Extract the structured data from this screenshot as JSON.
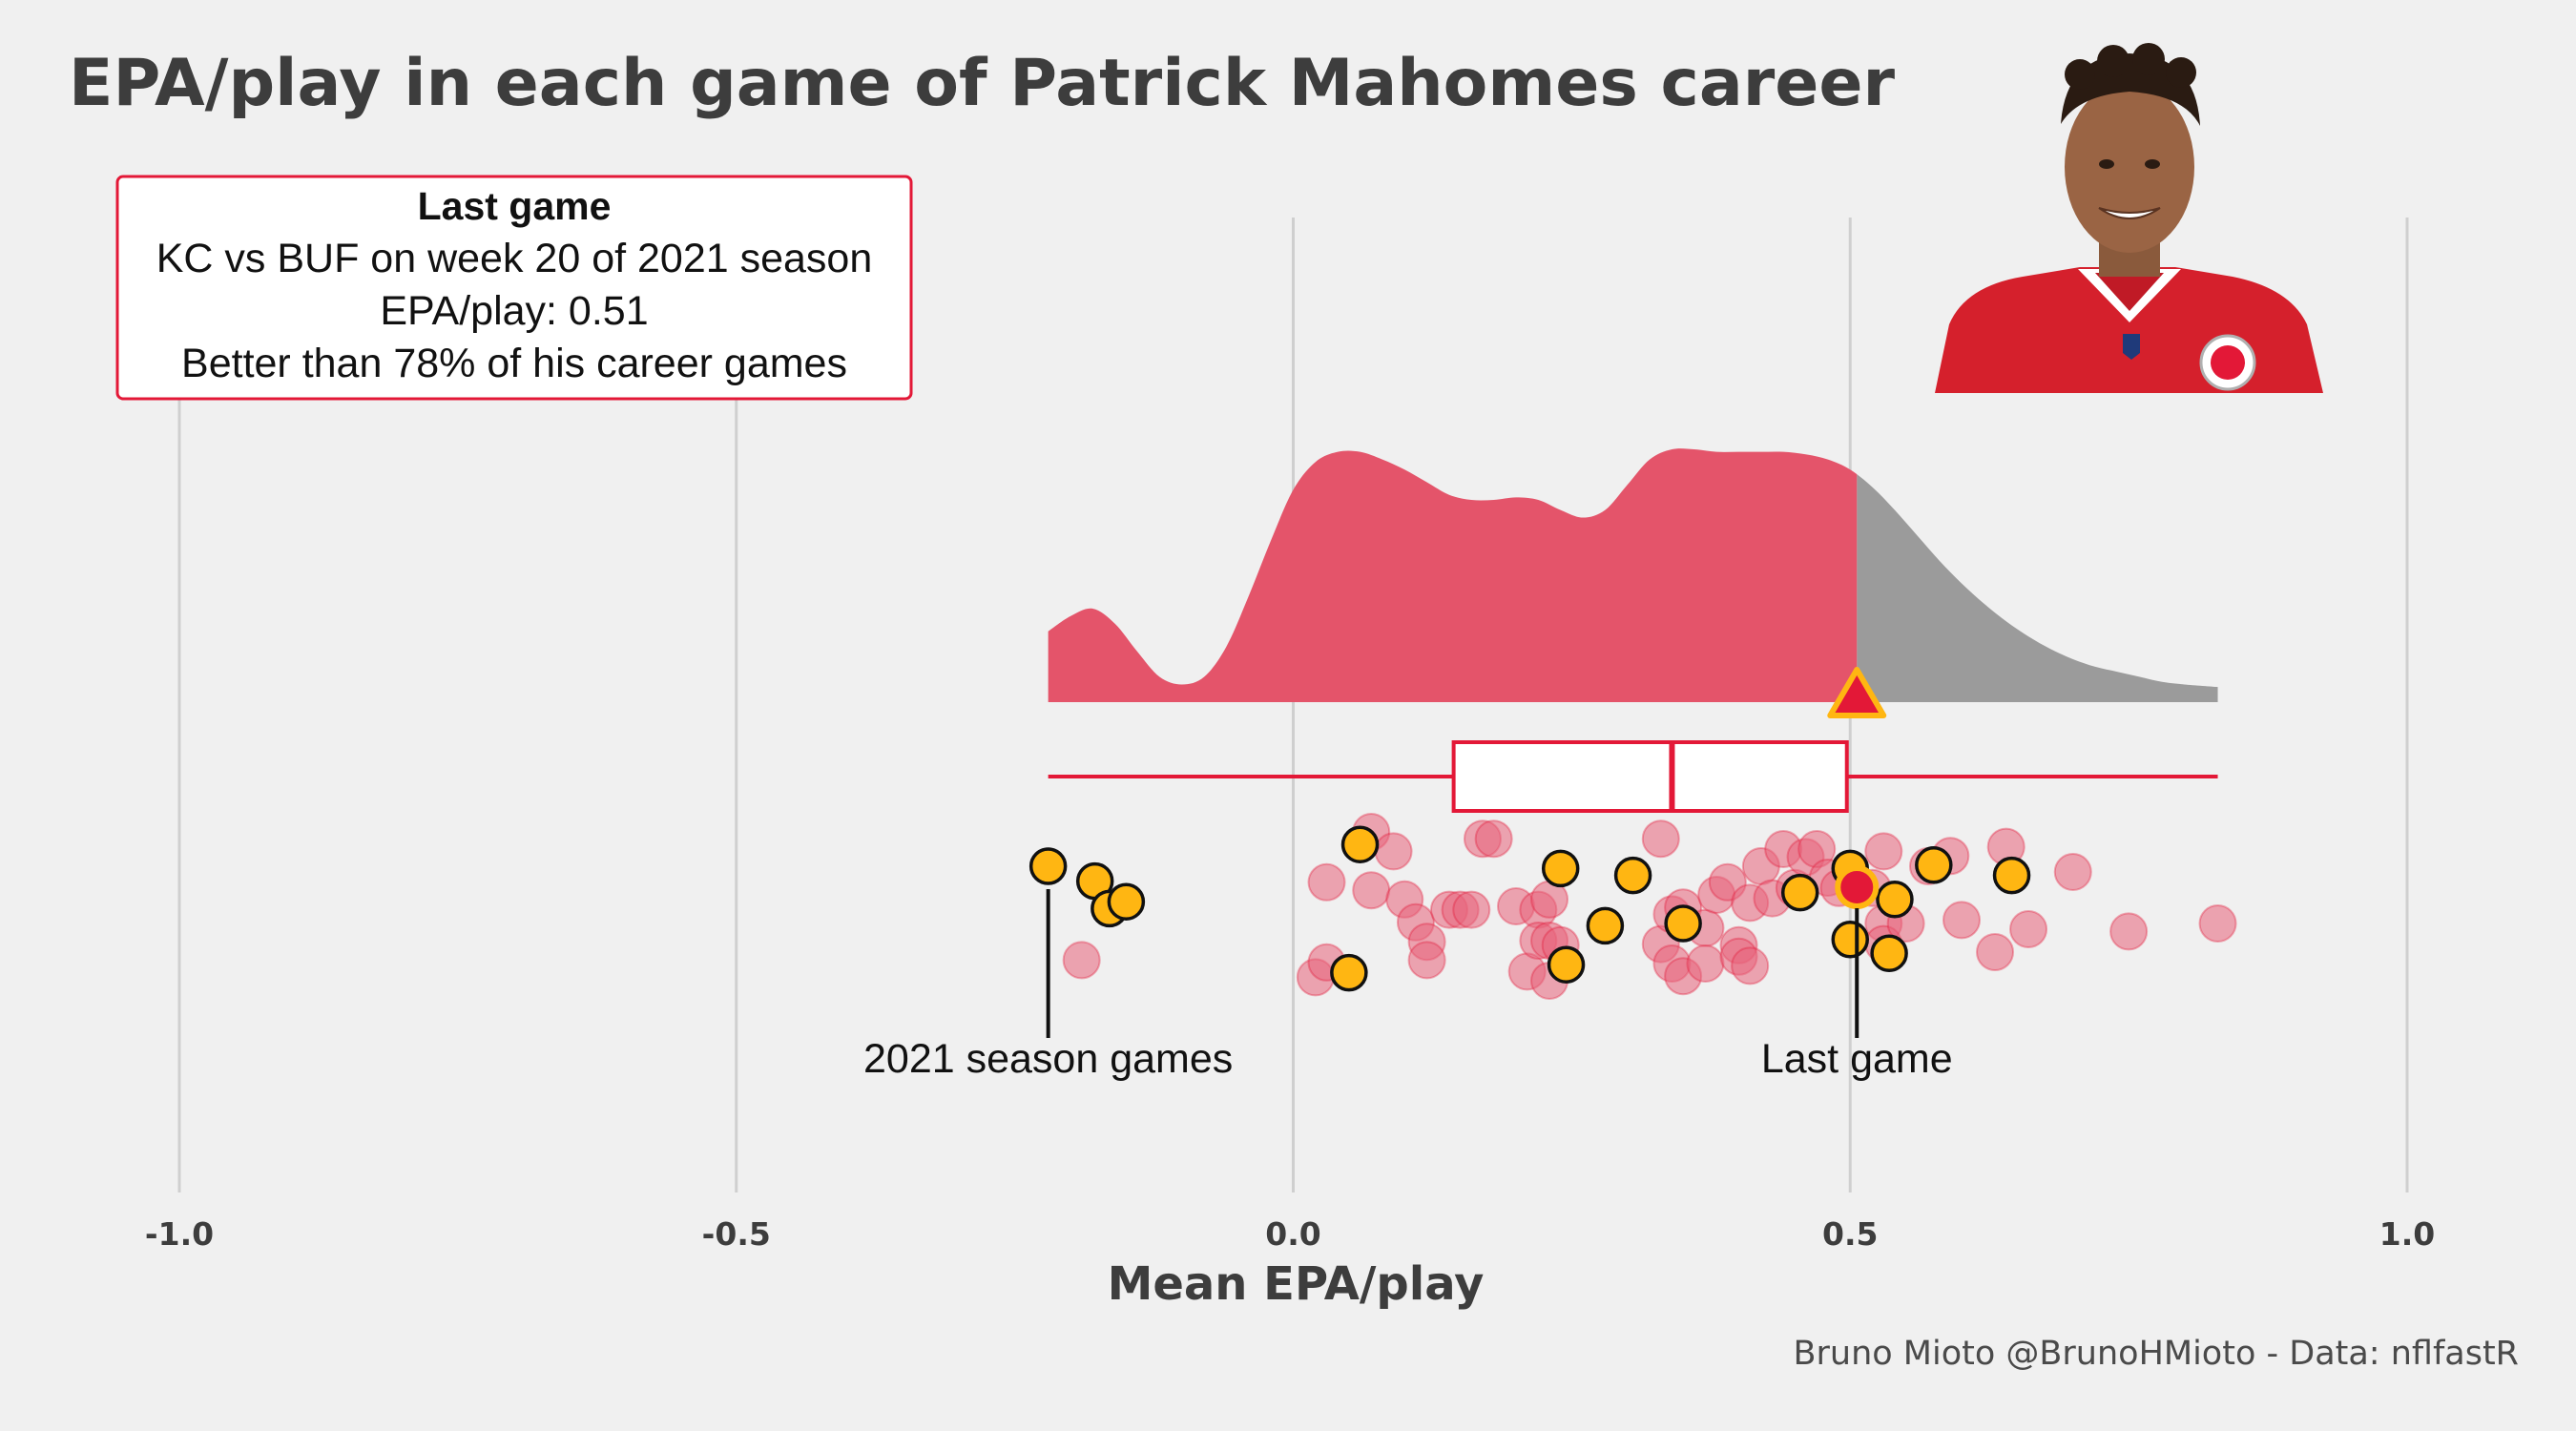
{
  "title": "EPA/play in each game of Patrick Mahomes career",
  "caption": "Bruno Mioto @BrunoHMioto - Data: nflfastR",
  "info_box": {
    "heading": "Last game",
    "line1": "KC vs BUF on week 20 of 2021 season",
    "line2": "EPA/play: 0.51",
    "line3": "Better than 78% of his career games"
  },
  "annotations": {
    "season_label": "2021 season games",
    "last_game_label": "Last game"
  },
  "colors": {
    "accent": "#e31837",
    "density_fill": "#e4546a",
    "density_grey": "#9b9b9b",
    "season_point": "#ffb612",
    "other_point": "#e8637a",
    "background": "#f0f0f0",
    "grid": "#cfcfcf"
  },
  "image": {
    "name": "player-headshot"
  },
  "chart_data": {
    "type": "raincloud",
    "xlabel": "Mean EPA/play",
    "xlim": [
      -1.0,
      1.0
    ],
    "ticks": [
      -1.0,
      -0.5,
      0.0,
      0.5,
      1.0
    ],
    "tick_labels": [
      "-1.0",
      "-0.5",
      "0.0",
      "0.5",
      "1.0"
    ],
    "grid": true,
    "box": {
      "min": -0.22,
      "q1": 0.144,
      "median": 0.34,
      "q3": 0.497,
      "max": 0.83
    },
    "last_game": {
      "x": 0.506,
      "percentile": 78
    },
    "density": {
      "x": [
        -0.22,
        -0.2,
        -0.18,
        -0.16,
        -0.14,
        -0.12,
        -0.1,
        -0.08,
        -0.06,
        -0.04,
        -0.02,
        0.0,
        0.02,
        0.04,
        0.06,
        0.08,
        0.1,
        0.12,
        0.14,
        0.16,
        0.18,
        0.2,
        0.22,
        0.24,
        0.26,
        0.28,
        0.3,
        0.32,
        0.34,
        0.36,
        0.38,
        0.4,
        0.42,
        0.44,
        0.46,
        0.48,
        0.5,
        0.52,
        0.54,
        0.56,
        0.58,
        0.6,
        0.62,
        0.64,
        0.66,
        0.68,
        0.7,
        0.72,
        0.74,
        0.76,
        0.78,
        0.8,
        0.83
      ],
      "y": [
        0.28,
        0.34,
        0.37,
        0.31,
        0.2,
        0.1,
        0.07,
        0.1,
        0.22,
        0.42,
        0.64,
        0.84,
        0.95,
        0.99,
        0.99,
        0.96,
        0.92,
        0.87,
        0.82,
        0.8,
        0.8,
        0.81,
        0.8,
        0.76,
        0.73,
        0.76,
        0.86,
        0.96,
        1.0,
        1.0,
        0.99,
        0.99,
        0.99,
        0.99,
        0.98,
        0.96,
        0.92,
        0.85,
        0.76,
        0.66,
        0.56,
        0.47,
        0.39,
        0.32,
        0.26,
        0.21,
        0.17,
        0.14,
        0.12,
        0.1,
        0.08,
        0.07,
        0.06
      ]
    },
    "season_2021_games": [
      {
        "x": -0.22,
        "j": -0.05
      },
      {
        "x": -0.178,
        "j": 0.08
      },
      {
        "x": -0.165,
        "j": 0.32
      },
      {
        "x": -0.15,
        "j": 0.26
      },
      {
        "x": 0.06,
        "j": -0.24
      },
      {
        "x": 0.05,
        "j": 0.88
      },
      {
        "x": 0.24,
        "j": -0.03
      },
      {
        "x": 0.245,
        "j": 0.81
      },
      {
        "x": 0.305,
        "j": 0.03
      },
      {
        "x": 0.28,
        "j": 0.47
      },
      {
        "x": 0.35,
        "j": 0.45
      },
      {
        "x": 0.455,
        "j": 0.18
      },
      {
        "x": 0.5,
        "j": -0.03
      },
      {
        "x": 0.5,
        "j": 0.59
      },
      {
        "x": 0.535,
        "j": 0.71
      },
      {
        "x": 0.54,
        "j": 0.24
      },
      {
        "x": 0.575,
        "j": -0.06
      },
      {
        "x": 0.645,
        "j": 0.03
      }
    ],
    "other_games": [
      {
        "x": -0.19,
        "j": 0.77
      },
      {
        "x": 0.02,
        "j": 0.92
      },
      {
        "x": 0.03,
        "j": 0.09
      },
      {
        "x": 0.03,
        "j": 0.79
      },
      {
        "x": 0.07,
        "j": -0.35
      },
      {
        "x": 0.07,
        "j": 0.16
      },
      {
        "x": 0.09,
        "j": -0.18
      },
      {
        "x": 0.1,
        "j": 0.24
      },
      {
        "x": 0.11,
        "j": 0.44
      },
      {
        "x": 0.12,
        "j": 0.61
      },
      {
        "x": 0.12,
        "j": 0.77
      },
      {
        "x": 0.14,
        "j": 0.33
      },
      {
        "x": 0.15,
        "j": 0.33
      },
      {
        "x": 0.16,
        "j": 0.33
      },
      {
        "x": 0.17,
        "j": -0.29
      },
      {
        "x": 0.18,
        "j": -0.29
      },
      {
        "x": 0.2,
        "j": 0.3
      },
      {
        "x": 0.21,
        "j": 0.87
      },
      {
        "x": 0.22,
        "j": 0.33
      },
      {
        "x": 0.22,
        "j": 0.6
      },
      {
        "x": 0.23,
        "j": 0.24
      },
      {
        "x": 0.23,
        "j": 0.6
      },
      {
        "x": 0.23,
        "j": 0.95
      },
      {
        "x": 0.24,
        "j": 0.64
      },
      {
        "x": 0.33,
        "j": -0.29
      },
      {
        "x": 0.33,
        "j": 0.63
      },
      {
        "x": 0.34,
        "j": 0.37
      },
      {
        "x": 0.34,
        "j": 0.8
      },
      {
        "x": 0.35,
        "j": 0.31
      },
      {
        "x": 0.35,
        "j": 0.91
      },
      {
        "x": 0.37,
        "j": 0.49
      },
      {
        "x": 0.37,
        "j": 0.8
      },
      {
        "x": 0.38,
        "j": 0.2
      },
      {
        "x": 0.39,
        "j": 0.09
      },
      {
        "x": 0.4,
        "j": 0.64
      },
      {
        "x": 0.4,
        "j": 0.74
      },
      {
        "x": 0.41,
        "j": 0.82
      },
      {
        "x": 0.41,
        "j": 0.27
      },
      {
        "x": 0.42,
        "j": -0.05
      },
      {
        "x": 0.43,
        "j": 0.23
      },
      {
        "x": 0.44,
        "j": -0.2
      },
      {
        "x": 0.45,
        "j": 0.14
      },
      {
        "x": 0.46,
        "j": -0.13
      },
      {
        "x": 0.47,
        "j": -0.2
      },
      {
        "x": 0.48,
        "j": 0.05
      },
      {
        "x": 0.49,
        "j": 0.14
      },
      {
        "x": 0.52,
        "j": 0.14
      },
      {
        "x": 0.53,
        "j": 0.45
      },
      {
        "x": 0.53,
        "j": 0.63
      },
      {
        "x": 0.53,
        "j": -0.18
      },
      {
        "x": 0.55,
        "j": 0.45
      },
      {
        "x": 0.57,
        "j": -0.05
      },
      {
        "x": 0.59,
        "j": -0.14
      },
      {
        "x": 0.6,
        "j": 0.42
      },
      {
        "x": 0.63,
        "j": 0.7
      },
      {
        "x": 0.64,
        "j": -0.22
      },
      {
        "x": 0.66,
        "j": 0.5
      },
      {
        "x": 0.7,
        "j": 0.0
      },
      {
        "x": 0.75,
        "j": 0.52
      },
      {
        "x": 0.83,
        "j": 0.45
      }
    ]
  }
}
